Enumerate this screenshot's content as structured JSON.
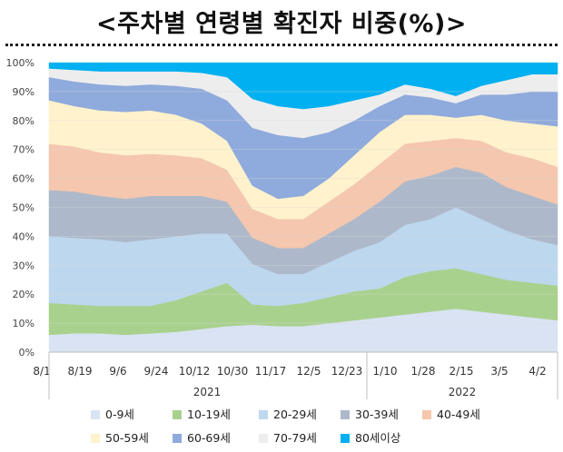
{
  "title": "<주차별 연령별 확진자 비중(%)>",
  "chart_data": {
    "type": "area",
    "stacked": true,
    "percent": true,
    "ylim": [
      0,
      100
    ],
    "y_ticks": [
      "0%",
      "10%",
      "20%",
      "30%",
      "40%",
      "50%",
      "60%",
      "70%",
      "80%",
      "90%",
      "100%"
    ],
    "x_ticks": [
      "8/1",
      "8/19",
      "9/6",
      "9/24",
      "10/12",
      "10/30",
      "11/17",
      "12/5",
      "12/23",
      "1/10",
      "1/28",
      "2/15",
      "3/5",
      "4/2"
    ],
    "year_labels": [
      "2021",
      "2022"
    ],
    "grid": true,
    "legend_position": "bottom",
    "series": [
      {
        "name": "0-9세",
        "color": "#dae3f3",
        "values": [
          6,
          6.5,
          6.5,
          6,
          6.5,
          7,
          8,
          9,
          9.5,
          9,
          9,
          10,
          11,
          12,
          13,
          14,
          15,
          14,
          13,
          12,
          11
        ]
      },
      {
        "name": "10-19세",
        "color": "#a9d18e",
        "values": [
          11,
          10,
          9.5,
          10,
          9.5,
          11,
          13,
          15,
          7,
          7,
          8,
          9,
          10,
          10,
          13,
          14,
          14,
          13,
          12,
          12,
          12
        ]
      },
      {
        "name": "20-29세",
        "color": "#bdd7ee",
        "values": [
          23,
          23,
          23,
          22,
          23,
          22,
          20,
          17,
          14,
          11,
          10,
          12,
          14,
          16,
          18,
          18,
          21,
          19,
          17,
          15,
          14
        ]
      },
      {
        "name": "30-39세",
        "color": "#adb9ca",
        "values": [
          16,
          16,
          15,
          15,
          15,
          14,
          13,
          11,
          9,
          9,
          9,
          10,
          11,
          14,
          15,
          15,
          14,
          16,
          15,
          15,
          14
        ]
      },
      {
        "name": "40-49세",
        "color": "#f4c7ae",
        "values": [
          16,
          15.5,
          15,
          15,
          14.5,
          14,
          13,
          11,
          10,
          10,
          10,
          11,
          12,
          13,
          13,
          12,
          10,
          11,
          12,
          13,
          13
        ]
      },
      {
        "name": "50-59세",
        "color": "#fff2cc",
        "values": [
          15,
          14,
          14.5,
          15,
          15,
          14,
          12,
          10,
          8,
          7,
          8,
          8,
          10,
          11,
          10,
          9,
          7,
          9,
          11,
          12,
          14
        ]
      },
      {
        "name": "60-69세",
        "color": "#8faadc",
        "values": [
          8,
          8.5,
          9,
          9,
          9,
          10,
          12,
          14,
          20,
          22,
          20,
          16,
          12,
          9,
          7,
          6,
          5,
          7,
          9,
          11,
          12
        ]
      },
      {
        "name": "70-79세",
        "color": "#ededed",
        "values": [
          3,
          4,
          4.5,
          5,
          4.5,
          5,
          5.5,
          8,
          10,
          10,
          10,
          9,
          7,
          4,
          3.5,
          3,
          2.5,
          3,
          5,
          6,
          6
        ]
      },
      {
        "name": "80세이상",
        "color": "#00b0f0",
        "values": [
          2,
          2.5,
          3,
          3,
          3,
          3,
          3.5,
          5,
          12.5,
          15,
          16,
          15,
          13,
          11,
          7.5,
          9,
          11.5,
          8,
          6,
          4,
          4
        ]
      }
    ]
  }
}
